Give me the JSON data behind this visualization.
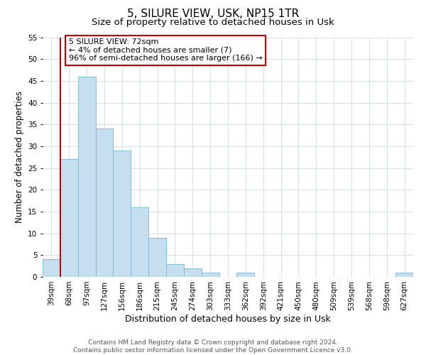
{
  "title": "5, SILURE VIEW, USK, NP15 1TR",
  "subtitle": "Size of property relative to detached houses in Usk",
  "xlabel": "Distribution of detached houses by size in Usk",
  "ylabel": "Number of detached properties",
  "bar_labels": [
    "39sqm",
    "68sqm",
    "97sqm",
    "127sqm",
    "156sqm",
    "186sqm",
    "215sqm",
    "245sqm",
    "274sqm",
    "303sqm",
    "333sqm",
    "362sqm",
    "392sqm",
    "421sqm",
    "450sqm",
    "480sqm",
    "509sqm",
    "539sqm",
    "568sqm",
    "598sqm",
    "627sqm"
  ],
  "bar_values": [
    4,
    27,
    46,
    34,
    29,
    16,
    9,
    3,
    2,
    1,
    0,
    1,
    0,
    0,
    0,
    0,
    0,
    0,
    0,
    0,
    1
  ],
  "bar_color": "#c5dff0",
  "bar_edge_color": "#7ab3d3",
  "ylim": [
    0,
    55
  ],
  "yticks": [
    0,
    5,
    10,
    15,
    20,
    25,
    30,
    35,
    40,
    45,
    50,
    55
  ],
  "red_line_bar_index": 1,
  "annotation_title": "5 SILURE VIEW: 72sqm",
  "annotation_line1": "← 4% of detached houses are smaller (7)",
  "annotation_line2": "96% of semi-detached houses are larger (166) →",
  "annotation_box_color": "#ffffff",
  "annotation_box_edge": "#cc0000",
  "red_line_color": "#cc0000",
  "footer_line1": "Contains HM Land Registry data © Crown copyright and database right 2024.",
  "footer_line2": "Contains public sector information licensed under the Open Government Licence v3.0.",
  "background_color": "#ffffff",
  "grid_color": "#c8dce8",
  "title_fontsize": 11,
  "subtitle_fontsize": 9.5,
  "xlabel_fontsize": 9,
  "ylabel_fontsize": 8.5,
  "tick_fontsize": 7.5,
  "footer_fontsize": 6.5,
  "annotation_fontsize": 8
}
